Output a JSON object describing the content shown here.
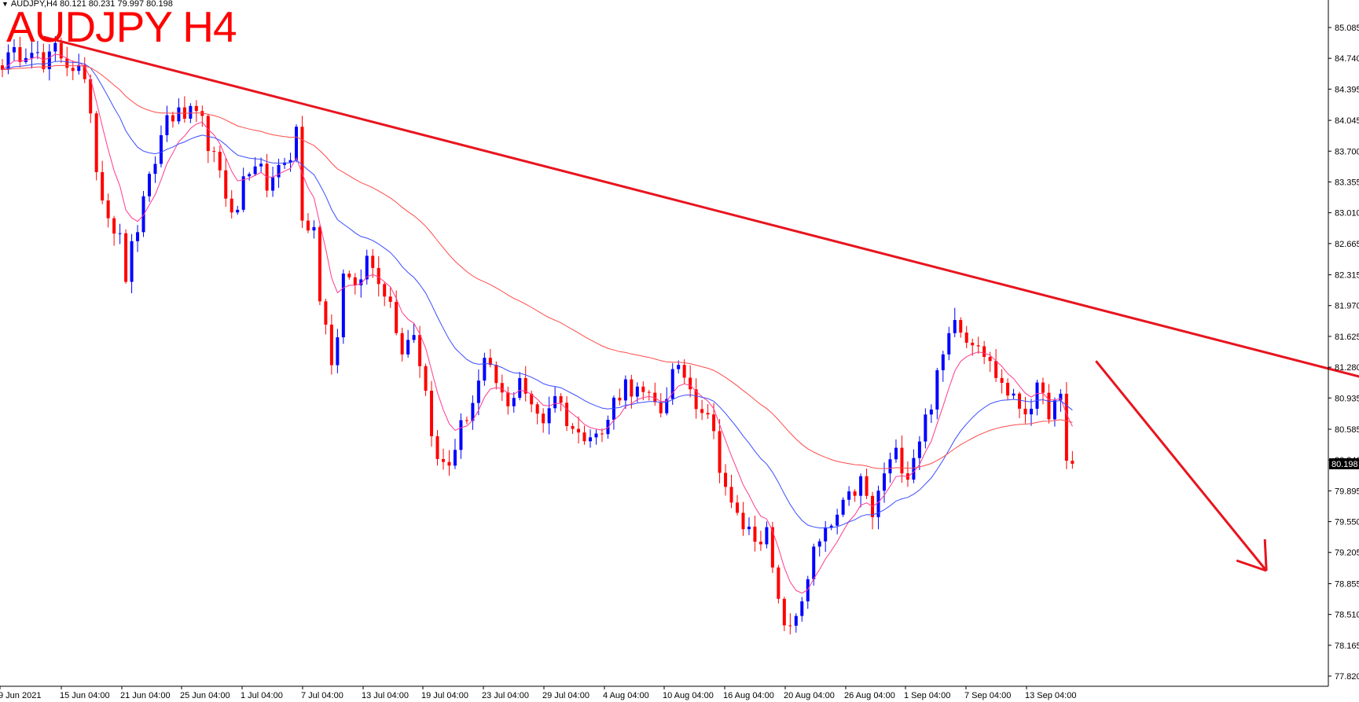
{
  "header": {
    "symbol_info": "AUDJPY,H4  80.121 80.231 79.997 80.198",
    "title": "AUDJPY H4"
  },
  "price_tag": "80.198",
  "colors": {
    "bull": "#0000ff",
    "bear": "#ff0000",
    "trendline": "#e8141e",
    "ma_fast": "#ff3a8c",
    "ma_mid": "#3a4dff",
    "ma_slow": "#ff4a4a",
    "axis": "#000000",
    "background": "#ffffff"
  },
  "chart_data": {
    "type": "candlestick",
    "timeframe": "H4",
    "symbol": "AUDJPY",
    "y_ticks": [
      "85.085",
      "84.740",
      "84.395",
      "84.045",
      "83.700",
      "83.355",
      "83.010",
      "82.665",
      "82.315",
      "81.970",
      "81.625",
      "81.280",
      "80.935",
      "80.585",
      "80.240",
      "79.895",
      "79.550",
      "79.205",
      "78.855",
      "78.510",
      "78.165",
      "77.820"
    ],
    "ylim": [
      77.82,
      85.085
    ],
    "x_labels": [
      "9 Jun 2021",
      "15 Jun 04:00",
      "21 Jun 04:00",
      "25 Jun 04:00",
      "1 Jul 04:00",
      "7 Jul 04:00",
      "13 Jul 04:00",
      "19 Jul 04:00",
      "23 Jul 04:00",
      "29 Jul 04:00",
      "4 Aug 04:00",
      "10 Aug 04:00",
      "16 Aug 04:00",
      "20 Aug 04:00",
      "26 Aug 04:00",
      "1 Sep 04:00",
      "7 Sep 04:00",
      "13 Sep 04:00"
    ],
    "close_path": [
      [
        0,
        84.7
      ],
      [
        3,
        84.8
      ],
      [
        5,
        84.9
      ],
      [
        7,
        84.6
      ],
      [
        9,
        84.85
      ],
      [
        11,
        84.7
      ],
      [
        13,
        84.6
      ],
      [
        15,
        84.2
      ],
      [
        16,
        83.5
      ],
      [
        18,
        83.0
      ],
      [
        20,
        82.7
      ],
      [
        21,
        82.3
      ],
      [
        22,
        82.6
      ],
      [
        24,
        83.1
      ],
      [
        26,
        83.6
      ],
      [
        28,
        84.1
      ],
      [
        30,
        84.1
      ],
      [
        32,
        84.1
      ],
      [
        34,
        84.0
      ],
      [
        36,
        83.6
      ],
      [
        38,
        83.2
      ],
      [
        40,
        83.0
      ],
      [
        41,
        83.4
      ],
      [
        43,
        83.6
      ],
      [
        45,
        83.3
      ],
      [
        47,
        83.5
      ],
      [
        49,
        83.6
      ],
      [
        50,
        84.0
      ],
      [
        51,
        82.9
      ],
      [
        53,
        82.8
      ],
      [
        54,
        82.1
      ],
      [
        56,
        81.4
      ],
      [
        57,
        81.6
      ],
      [
        58,
        82.4
      ],
      [
        60,
        82.1
      ],
      [
        62,
        82.5
      ],
      [
        64,
        82.3
      ],
      [
        66,
        82.0
      ],
      [
        68,
        81.5
      ],
      [
        70,
        81.7
      ],
      [
        72,
        81.0
      ],
      [
        74,
        80.2
      ],
      [
        76,
        80.2
      ],
      [
        78,
        80.6
      ],
      [
        80,
        80.9
      ],
      [
        82,
        81.3
      ],
      [
        84,
        81.1
      ],
      [
        86,
        80.8
      ],
      [
        88,
        81.2
      ],
      [
        90,
        80.8
      ],
      [
        92,
        80.7
      ],
      [
        94,
        81.0
      ],
      [
        96,
        80.7
      ],
      [
        98,
        80.5
      ],
      [
        100,
        80.6
      ],
      [
        102,
        80.5
      ],
      [
        104,
        80.9
      ],
      [
        106,
        81.1
      ],
      [
        108,
        81.0
      ],
      [
        110,
        80.9
      ],
      [
        112,
        80.8
      ],
      [
        114,
        81.2
      ],
      [
        116,
        81.2
      ],
      [
        118,
        80.9
      ],
      [
        120,
        80.8
      ],
      [
        122,
        80.2
      ],
      [
        124,
        79.7
      ],
      [
        126,
        79.5
      ],
      [
        128,
        79.4
      ],
      [
        130,
        79.4
      ],
      [
        132,
        78.6
      ],
      [
        134,
        78.3
      ],
      [
        136,
        78.7
      ],
      [
        138,
        79.2
      ],
      [
        140,
        79.4
      ],
      [
        142,
        79.6
      ],
      [
        144,
        79.8
      ],
      [
        146,
        80.0
      ],
      [
        148,
        79.6
      ],
      [
        150,
        80.1
      ],
      [
        152,
        80.3
      ],
      [
        154,
        80.1
      ],
      [
        156,
        80.5
      ],
      [
        158,
        80.9
      ],
      [
        160,
        81.4
      ],
      [
        162,
        81.9
      ],
      [
        164,
        81.6
      ],
      [
        166,
        81.6
      ],
      [
        168,
        81.3
      ],
      [
        170,
        81.1
      ],
      [
        172,
        80.9
      ],
      [
        174,
        80.8
      ],
      [
        176,
        81.0
      ],
      [
        178,
        80.8
      ],
      [
        180,
        80.9
      ],
      [
        181,
        80.2
      ],
      [
        182,
        80.198
      ]
    ],
    "candle_count": 183,
    "trendline": {
      "from": [
        7,
        84.98
      ],
      "to": [
        254,
        80.78
      ],
      "color": "#e8141e"
    },
    "forecast_arrow": {
      "from": [
        186,
        81.35
      ],
      "to": [
        215,
        79.0
      ],
      "direction": "down"
    },
    "ma_periods_note": [
      "fast",
      "mid",
      "slow"
    ],
    "last_price": 80.198,
    "grid": false
  }
}
